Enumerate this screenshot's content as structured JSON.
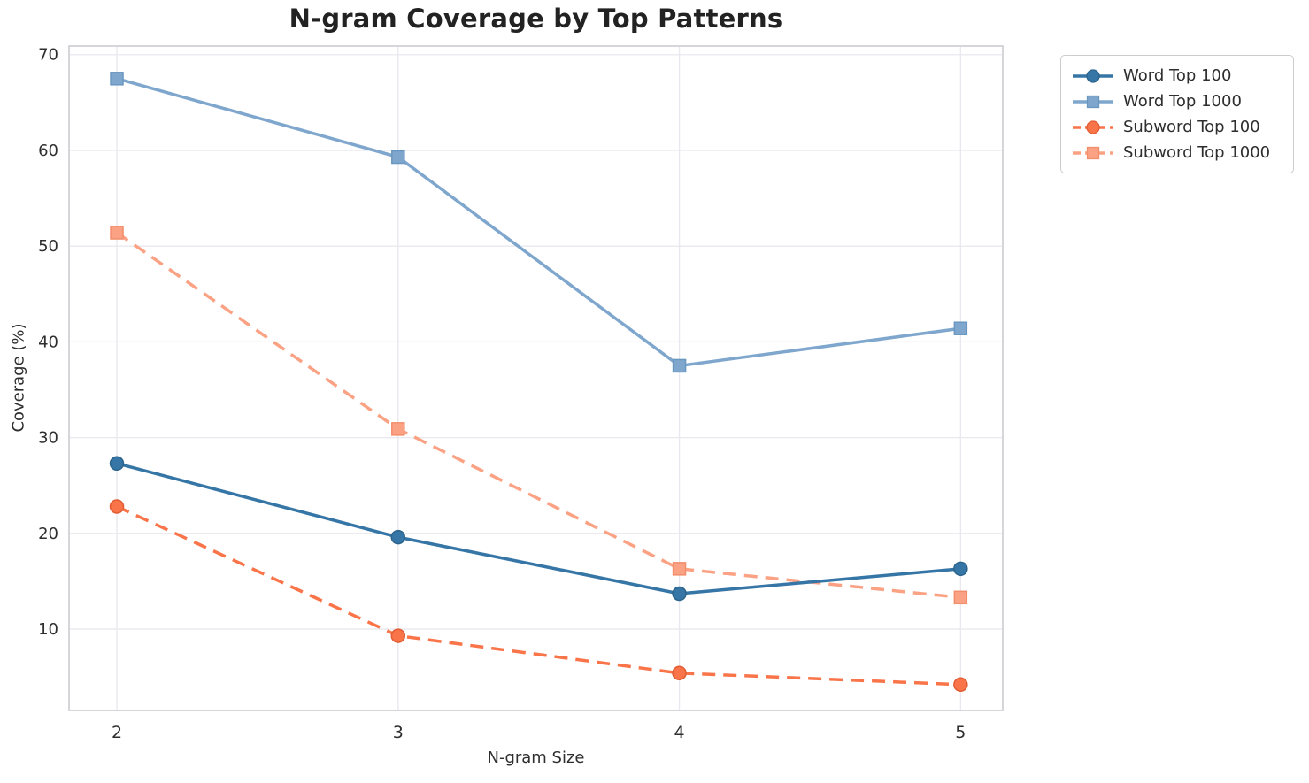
{
  "chart_data": {
    "type": "line",
    "title": "N-gram Coverage by Top Patterns",
    "xlabel": "N-gram Size",
    "ylabel": "Coverage (%)",
    "x": [
      2,
      3,
      4,
      5
    ],
    "xticks": [
      "2",
      "3",
      "4",
      "5"
    ],
    "yticks": [
      10,
      20,
      30,
      40,
      50,
      60,
      70
    ],
    "xlim": [
      1.83,
      5.15
    ],
    "ylim": [
      1.5,
      70.9
    ],
    "grid": true,
    "legend_position": "outside-right",
    "series": [
      {
        "name": "Word Top 100",
        "values": [
          27.3,
          19.6,
          13.7,
          16.3
        ],
        "color": "#3576A6",
        "edge": "#2c648c",
        "marker": "circle",
        "dash": false
      },
      {
        "name": "Word Top 1000",
        "values": [
          67.5,
          59.3,
          37.5,
          41.4
        ],
        "color": "#7FA7CD",
        "edge": "#6a97c0",
        "marker": "square",
        "dash": false
      },
      {
        "name": "Subword Top 100",
        "values": [
          22.8,
          9.3,
          5.4,
          4.2
        ],
        "color": "#F97449",
        "edge": "#e05c33",
        "marker": "circle",
        "dash": true
      },
      {
        "name": "Subword Top 1000",
        "values": [
          51.4,
          30.9,
          16.3,
          13.3
        ],
        "color": "#FBA284",
        "edge": "#f28e6c",
        "marker": "square",
        "dash": true
      }
    ]
  },
  "colors": {
    "grid": "#e8e8ee",
    "spine": "#d2d2d6",
    "tick_label": "#2e2e2e",
    "title": "#222222",
    "legend_border": "#cccccc",
    "background": "#ffffff"
  }
}
